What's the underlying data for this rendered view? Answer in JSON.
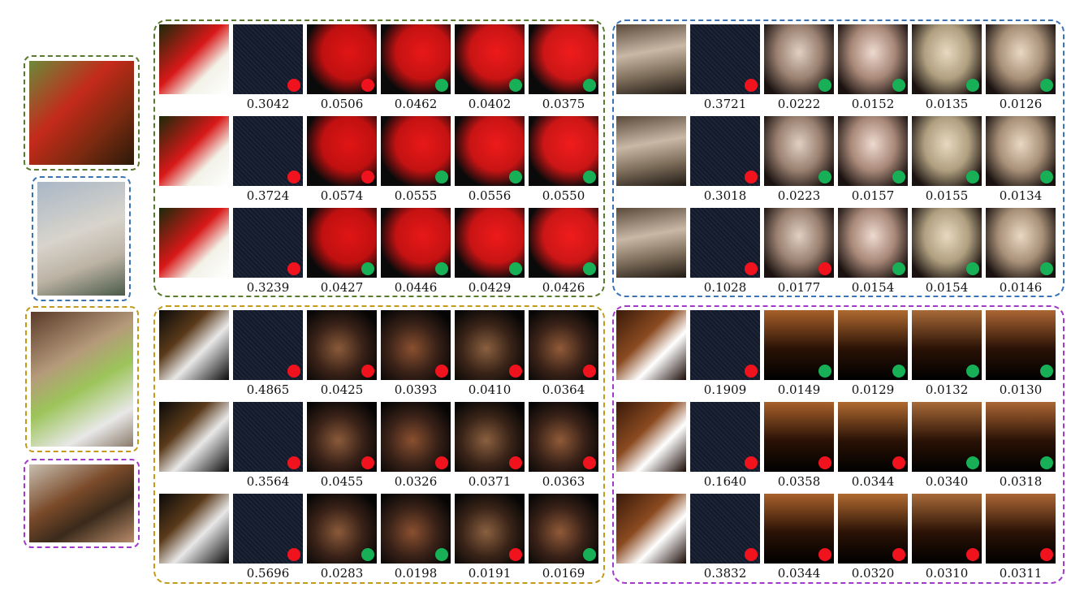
{
  "palette": {
    "green_group": "#5a7a2e",
    "blue_group": "#3b74b5",
    "gold_group": "#c49a1a",
    "purple_group": "#a23ac8",
    "dot_red": "#f0131e",
    "dot_green": "#17b057"
  },
  "sources": [
    {
      "name": "source-image-rooster",
      "color": "#5a7a2e",
      "bg": "linear-gradient(135deg,#6b8a3a 0%,#c42a1a 40%,#7a2a10 70%,#2a1a0a 100%)"
    },
    {
      "name": "source-image-wolf",
      "color": "#3b74b5",
      "bg": "linear-gradient(160deg,#a9b7c6 0%,#d8d4cc 45%,#bdb3a5 70%,#4a5a48 100%)"
    },
    {
      "name": "source-image-child",
      "color": "#c49a1a",
      "bg": "linear-gradient(150deg,#5a3a2a 0%,#b59a7a 35%,#9cc45a 55%,#e8e8e8 80%,#8a7a6a 100%)"
    },
    {
      "name": "source-image-room",
      "color": "#a23ac8",
      "bg": "linear-gradient(150deg,#c8bfb0 0%,#7a4a2a 40%,#3a2a1a 65%,#b88a6a 100%)"
    }
  ],
  "groups": [
    {
      "name": "rooster",
      "color": "#5a7a2e",
      "rows": [
        {
          "scores": [
            "0.3042",
            "0.0506",
            "0.0462",
            "0.0402",
            "0.0375"
          ],
          "dots": [
            "red",
            "red",
            "green",
            "green",
            "green"
          ]
        },
        {
          "scores": [
            "0.3724",
            "0.0574",
            "0.0555",
            "0.0556",
            "0.0550"
          ],
          "dots": [
            "red",
            "red",
            "green",
            "green",
            "green"
          ]
        },
        {
          "scores": [
            "0.3239",
            "0.0427",
            "0.0446",
            "0.0429",
            "0.0426"
          ],
          "dots": [
            "red",
            "green",
            "green",
            "green",
            "green"
          ]
        }
      ]
    },
    {
      "name": "wolf",
      "color": "#3b74b5",
      "rows": [
        {
          "scores": [
            "0.3721",
            "0.0222",
            "0.0152",
            "0.0135",
            "0.0126"
          ],
          "dots": [
            "red",
            "green",
            "green",
            "green",
            "green"
          ]
        },
        {
          "scores": [
            "0.3018",
            "0.0223",
            "0.0157",
            "0.0155",
            "0.0134"
          ],
          "dots": [
            "red",
            "green",
            "green",
            "green",
            "green"
          ]
        },
        {
          "scores": [
            "0.1028",
            "0.0177",
            "0.0154",
            "0.0154",
            "0.0146"
          ],
          "dots": [
            "red",
            "red",
            "green",
            "green",
            "green"
          ]
        }
      ]
    },
    {
      "name": "child",
      "color": "#c49a1a",
      "rows": [
        {
          "scores": [
            "0.4865",
            "0.0425",
            "0.0393",
            "0.0410",
            "0.0364"
          ],
          "dots": [
            "red",
            "red",
            "red",
            "red",
            "red"
          ]
        },
        {
          "scores": [
            "0.3564",
            "0.0455",
            "0.0326",
            "0.0371",
            "0.0363"
          ],
          "dots": [
            "red",
            "red",
            "red",
            "red",
            "red"
          ]
        },
        {
          "scores": [
            "0.5696",
            "0.0283",
            "0.0198",
            "0.0191",
            "0.0169"
          ],
          "dots": [
            "red",
            "green",
            "green",
            "red",
            "green"
          ]
        }
      ]
    },
    {
      "name": "room",
      "color": "#a23ac8",
      "rows": [
        {
          "scores": [
            "0.1909",
            "0.0149",
            "0.0129",
            "0.0132",
            "0.0130"
          ],
          "dots": [
            "red",
            "green",
            "green",
            "green",
            "green"
          ]
        },
        {
          "scores": [
            "0.1640",
            "0.0358",
            "0.0344",
            "0.0340",
            "0.0318"
          ],
          "dots": [
            "red",
            "red",
            "red",
            "green",
            "green"
          ]
        },
        {
          "scores": [
            "0.3832",
            "0.0344",
            "0.0320",
            "0.0310",
            "0.0311"
          ],
          "dots": [
            "red",
            "red",
            "red",
            "red",
            "red"
          ]
        }
      ]
    }
  ]
}
